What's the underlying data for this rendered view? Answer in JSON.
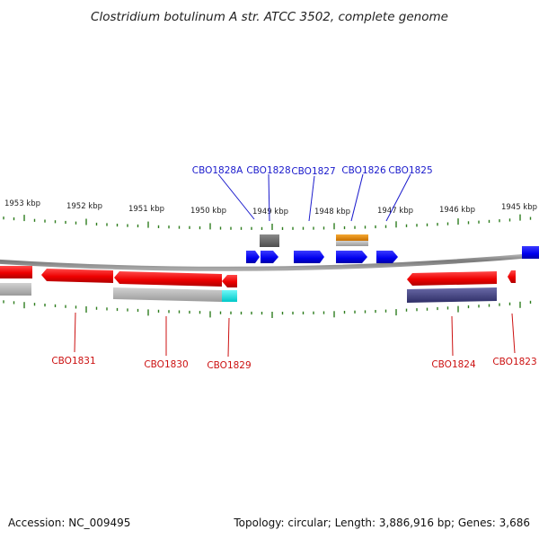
{
  "title": "Clostridium botulinum A str. ATCC 3502, complete genome",
  "footer": {
    "accession": "Accession: NC_009495",
    "summary": "Topology: circular; Length: 3,886,916 bp; Genes: 3,686"
  },
  "scale": {
    "tick_labels": [
      "1953 kbp",
      "1952 kbp",
      "1951 kbp",
      "1950 kbp",
      "1949 kbp",
      "1948 kbp",
      "1947 kbp",
      "1946 kbp",
      "1945 kbp"
    ]
  },
  "genes_top": [
    {
      "label": "CBO1828A"
    },
    {
      "label": "CBO1828"
    },
    {
      "label": "CBO1827"
    },
    {
      "label": "CBO1826"
    },
    {
      "label": "CBO1825"
    }
  ],
  "genes_bottom": [
    {
      "label": "CBO1831"
    },
    {
      "label": "CBO1830"
    },
    {
      "label": "CBO1829"
    },
    {
      "label": "CBO1824"
    },
    {
      "label": "CBO1823"
    }
  ],
  "colors": {
    "forward_gene": "#0000ee",
    "reverse_gene": "#ee0000",
    "tick": "#2e7d1e",
    "backbone": "#888888",
    "top_label": "#1a1acc",
    "bottom_label": "#cc1111",
    "feature_gray": "#666666",
    "feature_orange": "#e08a10",
    "feature_light_gray": "#bbbbbb",
    "feature_cyan": "#18e8e8",
    "feature_navy": "#4a4a8a"
  }
}
